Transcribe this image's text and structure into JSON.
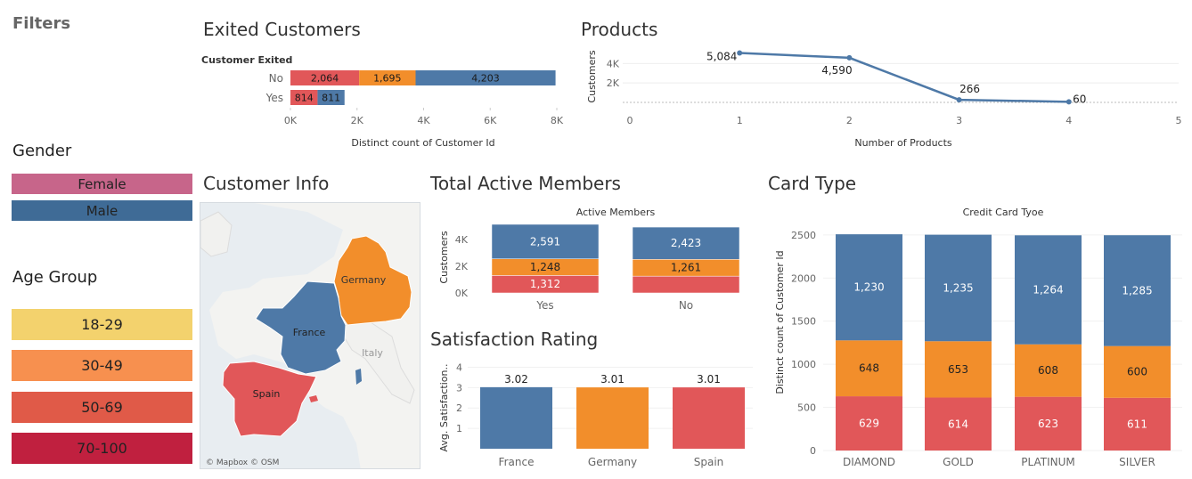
{
  "filters": {
    "title": "Filters",
    "gender_title": "Gender",
    "gender": [
      {
        "label": "Female",
        "color": "#c7658a"
      },
      {
        "label": "Male",
        "color": "#3f6b96"
      }
    ],
    "age_title": "Age Group",
    "age_groups": [
      {
        "label": "18-29",
        "color": "#f3d26d"
      },
      {
        "label": "30-49",
        "color": "#f7904f"
      },
      {
        "label": "50-69",
        "color": "#e05a48"
      },
      {
        "label": "70-100",
        "color": "#c0203f"
      }
    ]
  },
  "colors": {
    "blue": "#4e79a7",
    "orange": "#f28e2b",
    "red": "#e15759"
  },
  "titles": {
    "exited": "Exited Customers",
    "products": "Products",
    "customer_info": "Customer Info",
    "active": "Total Active Members",
    "satisfaction": "Satisfaction Rating",
    "card": "Card Type"
  },
  "map": {
    "labels": [
      "Germany",
      "France",
      "Spain",
      "Italy"
    ],
    "attribution": "© Mapbox © OSM"
  },
  "chart_data": [
    {
      "id": "exited",
      "type": "bar",
      "orientation": "horizontal",
      "stacked": true,
      "header": "Customer Exited",
      "categories": [
        "No",
        "Yes"
      ],
      "series": [
        {
          "values": [
            2064,
            814
          ],
          "color": "#e15759"
        },
        {
          "values": [
            1695,
            0
          ],
          "color": "#f28e2b"
        },
        {
          "values": [
            4203,
            811
          ],
          "color": "#4e79a7"
        }
      ],
      "segment_labels": [
        [
          "2,064",
          "1,695",
          "4,203"
        ],
        [
          "814",
          "811"
        ]
      ],
      "xlabel": "Distinct count of Customer Id",
      "xticks": [
        "0K",
        "2K",
        "4K",
        "6K",
        "8K"
      ],
      "xlim": [
        0,
        8000
      ]
    },
    {
      "id": "products",
      "type": "line",
      "x": [
        1,
        2,
        3,
        4
      ],
      "y": [
        5084,
        4590,
        266,
        60
      ],
      "point_labels": [
        "5,084",
        "4,590",
        "266",
        "60"
      ],
      "xlabel": "Number of Products",
      "ylabel": "Customers",
      "xticks": [
        "0",
        "1",
        "2",
        "3",
        "4",
        "5"
      ],
      "yticks": [
        "2K",
        "4K"
      ],
      "xlim": [
        0,
        5
      ],
      "ylim": [
        0,
        5500
      ],
      "color": "#4e79a7"
    },
    {
      "id": "active",
      "type": "bar",
      "stacked": true,
      "header": "Active Members",
      "categories": [
        "Yes",
        "No"
      ],
      "series": [
        {
          "values": [
            1312,
            1261
          ],
          "color": "#e15759"
        },
        {
          "values": [
            1248,
            1261
          ],
          "color": "#f28e2b"
        },
        {
          "values": [
            2591,
            2423
          ],
          "color": "#4e79a7"
        }
      ],
      "segment_labels": [
        [
          "1,312",
          "1,248",
          "2,591"
        ],
        [
          "",
          "1,261",
          "2,423"
        ]
      ],
      "ylabel": "Customers",
      "yticks": [
        "0K",
        "2K",
        "4K"
      ],
      "ylim": [
        0,
        5150
      ]
    },
    {
      "id": "satisfaction",
      "type": "bar",
      "categories": [
        "France",
        "Germany",
        "Spain"
      ],
      "values": [
        3.02,
        3.01,
        3.01
      ],
      "value_labels": [
        "3.02",
        "3.01",
        "3.01"
      ],
      "colors": [
        "#4e79a7",
        "#f28e2b",
        "#e15759"
      ],
      "ylabel": "Avg. Satisfaction..",
      "yticks": [
        "1",
        "2",
        "3",
        "4"
      ],
      "ylim": [
        0,
        4.5
      ]
    },
    {
      "id": "card",
      "type": "bar",
      "stacked": true,
      "header": "Credit Card Tyoe",
      "categories": [
        "DIAMOND",
        "GOLD",
        "PLATINUM",
        "SILVER"
      ],
      "series": [
        {
          "values": [
            629,
            614,
            623,
            611
          ],
          "color": "#e15759"
        },
        {
          "values": [
            648,
            653,
            608,
            600
          ],
          "color": "#f28e2b"
        },
        {
          "values": [
            1230,
            1235,
            1264,
            1285
          ],
          "color": "#4e79a7"
        }
      ],
      "segment_labels": [
        [
          "629",
          "648",
          "1,230"
        ],
        [
          "614",
          "653",
          "1,235"
        ],
        [
          "623",
          "608",
          "1,264"
        ],
        [
          "611",
          "600",
          "1,285"
        ]
      ],
      "ylabel": "Distinct count of Customer Id",
      "yticks": [
        "0",
        "500",
        "1000",
        "1500",
        "2000",
        "2500"
      ],
      "ylim": [
        0,
        2560
      ]
    }
  ]
}
